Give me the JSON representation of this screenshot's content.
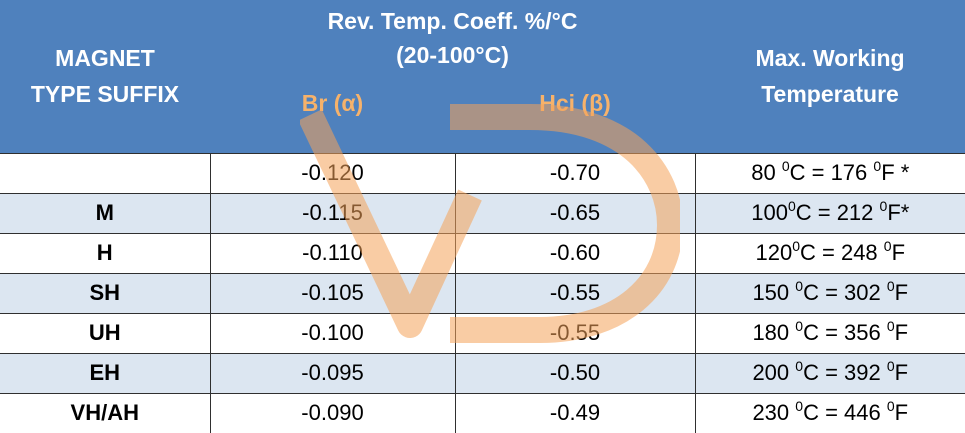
{
  "header": {
    "magnet_line1": "MAGNET",
    "magnet_line2": "TYPE SUFFIX",
    "coeff_line1": "Rev. Temp. Coeff. %/°C",
    "coeff_line2": "(20-100°C)",
    "br_label": "Br (α)",
    "hci_label": "Hci (β)",
    "max_line1": "Max. Working",
    "max_line2": "Temperature"
  },
  "rows": [
    {
      "suffix": "",
      "br": "-0.120",
      "hci": "-0.70",
      "c": "80 ",
      "c_unit": "C = 176 ",
      "f_unit": "F *"
    },
    {
      "suffix": "M",
      "br": "-0.115",
      "hci": "-0.65",
      "c": "100",
      "c_unit": "C = 212 ",
      "f_unit": "F*"
    },
    {
      "suffix": "H",
      "br": "-0.110",
      "hci": "-0.60",
      "c": "120",
      "c_unit": "C = 248 ",
      "f_unit": "F"
    },
    {
      "suffix": "SH",
      "br": "-0.105",
      "hci": "-0.55",
      "c": "150 ",
      "c_unit": "C = 302 ",
      "f_unit": "F"
    },
    {
      "suffix": "UH",
      "br": "-0.100",
      "hci": "-0.55",
      "c": "180 ",
      "c_unit": "C = 356 ",
      "f_unit": "F"
    },
    {
      "suffix": "EH",
      "br": "-0.095",
      "hci": "-0.50",
      "c": "200 ",
      "c_unit": "C = 392 ",
      "f_unit": "F"
    },
    {
      "suffix": "VH/AH",
      "br": "-0.090",
      "hci": "-0.49",
      "c": "230 ",
      "c_unit": "C = 446 ",
      "f_unit": "F"
    }
  ],
  "degree_sup": "0",
  "watermark": {
    "shape": "vd-logo",
    "color": "#f5a35a"
  }
}
